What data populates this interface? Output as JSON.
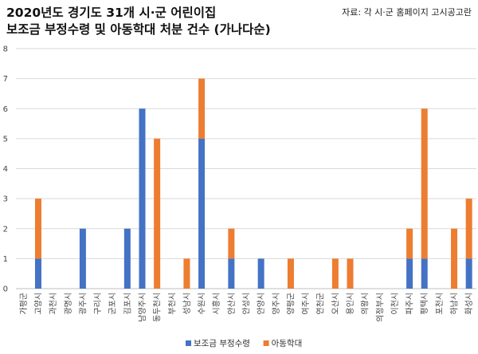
{
  "header": {
    "title_line1": "2020년도 경기도 31개 시·군 어린이집",
    "title_line2": "보조금 부정수령 및 아동학대 처분 건수 (가나다순)",
    "source": "자료: 각 시·군 홈페이지 고시공고란"
  },
  "chart_data": {
    "type": "bar",
    "stacked": true,
    "title": "2020년도 경기도 31개 시·군 어린이집 보조금 부정수령 및 아동학대 처분 건수 (가나다순)",
    "ylim": [
      0,
      8
    ],
    "yticks": [
      0,
      1,
      2,
      3,
      4,
      5,
      6,
      7,
      8
    ],
    "grid": true,
    "legend_position": "bottom-center",
    "categories": [
      "가평군",
      "고양시",
      "과천시",
      "광명시",
      "광주시",
      "구리시",
      "군포시",
      "김포시",
      "남양주시",
      "동두천시",
      "부천시",
      "성남시",
      "수원시",
      "시흥시",
      "안산시",
      "안성시",
      "안양시",
      "양주시",
      "양평군",
      "여주시",
      "연천군",
      "오산시",
      "용인시",
      "의왕시",
      "의정부시",
      "이천시",
      "파주시",
      "평택시",
      "포천시",
      "하남시",
      "화성시"
    ],
    "series": [
      {
        "name": "보조금 부정수령",
        "color": "#4472C4",
        "values": [
          0,
          1,
          0,
          0,
          2,
          0,
          0,
          2,
          6,
          0,
          0,
          0,
          5,
          0,
          1,
          0,
          1,
          0,
          0,
          0,
          0,
          0,
          0,
          0,
          0,
          0,
          1,
          1,
          0,
          0,
          1
        ]
      },
      {
        "name": "아동학대",
        "color": "#ED7D31",
        "values": [
          0,
          2,
          0,
          0,
          0,
          0,
          0,
          0,
          0,
          5,
          0,
          1,
          2,
          0,
          1,
          0,
          0,
          0,
          1,
          0,
          0,
          1,
          1,
          0,
          0,
          0,
          1,
          5,
          0,
          2,
          2
        ]
      }
    ]
  }
}
